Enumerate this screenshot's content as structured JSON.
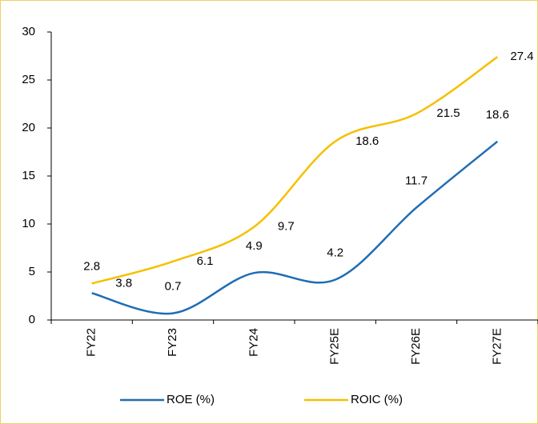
{
  "chart_data": {
    "type": "line",
    "categories": [
      "FY22",
      "FY23",
      "FY24",
      "FY25E",
      "FY26E",
      "FY27E"
    ],
    "series": [
      {
        "name": "ROE (%)",
        "color": "#1f6db5",
        "values": [
          2.8,
          0.7,
          4.9,
          4.2,
          11.7,
          18.6
        ]
      },
      {
        "name": "ROIC (%)",
        "color": "#f5c000",
        "values": [
          3.8,
          6.1,
          9.7,
          18.6,
          21.5,
          27.4
        ]
      }
    ],
    "ylim": [
      0,
      30
    ],
    "yticks": [
      0,
      5,
      10,
      15,
      20,
      25,
      30
    ],
    "grid": false,
    "legend": "bottom"
  }
}
